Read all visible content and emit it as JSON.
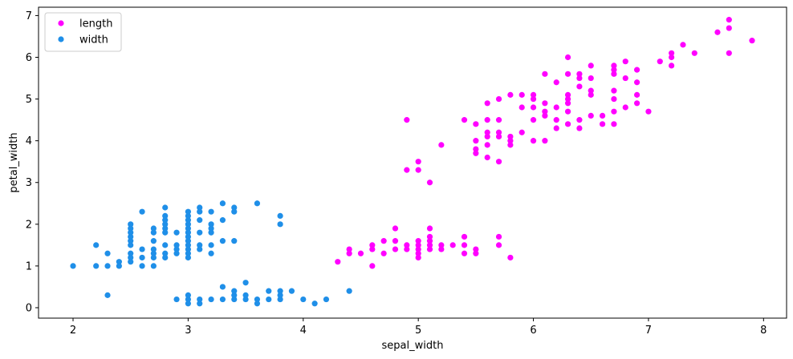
{
  "chart_data": {
    "type": "scatter",
    "title": "",
    "xlabel": "sepal_width",
    "ylabel": "petal_width",
    "xlim": [
      1.7,
      8.2
    ],
    "ylim": [
      -0.25,
      7.2
    ],
    "xticks": [
      2,
      3,
      4,
      5,
      6,
      7,
      8
    ],
    "yticks": [
      0,
      1,
      2,
      3,
      4,
      5,
      6,
      7
    ],
    "grid": false,
    "legend_position": "top-left",
    "series": [
      {
        "name": "length",
        "color": "#ff00ff",
        "points": [
          [
            4.3,
            1.1
          ],
          [
            4.4,
            1.3
          ],
          [
            4.4,
            1.4
          ],
          [
            4.5,
            1.3
          ],
          [
            4.6,
            1.0
          ],
          [
            4.6,
            1.4
          ],
          [
            4.6,
            1.5
          ],
          [
            4.7,
            1.3
          ],
          [
            4.7,
            1.6
          ],
          [
            4.8,
            1.4
          ],
          [
            4.8,
            1.6
          ],
          [
            4.8,
            1.9
          ],
          [
            4.9,
            1.4
          ],
          [
            4.9,
            1.5
          ],
          [
            5.0,
            1.2
          ],
          [
            5.0,
            1.3
          ],
          [
            5.0,
            1.4
          ],
          [
            5.0,
            1.5
          ],
          [
            5.0,
            1.6
          ],
          [
            5.1,
            1.4
          ],
          [
            5.1,
            1.5
          ],
          [
            5.1,
            1.6
          ],
          [
            5.1,
            1.7
          ],
          [
            5.1,
            1.9
          ],
          [
            5.2,
            1.4
          ],
          [
            5.2,
            1.5
          ],
          [
            5.3,
            1.5
          ],
          [
            5.4,
            1.3
          ],
          [
            5.4,
            1.5
          ],
          [
            5.4,
            1.7
          ],
          [
            5.5,
            1.3
          ],
          [
            5.5,
            1.4
          ],
          [
            5.7,
            1.5
          ],
          [
            5.7,
            1.7
          ],
          [
            5.8,
            1.2
          ],
          [
            4.9,
            4.5
          ],
          [
            4.9,
            3.3
          ],
          [
            5.0,
            3.3
          ],
          [
            5.0,
            3.5
          ],
          [
            5.1,
            3.0
          ],
          [
            5.2,
            3.9
          ],
          [
            5.4,
            4.5
          ],
          [
            5.5,
            3.7
          ],
          [
            5.5,
            3.8
          ],
          [
            5.5,
            4.0
          ],
          [
            5.5,
            4.4
          ],
          [
            5.6,
            3.6
          ],
          [
            5.6,
            3.9
          ],
          [
            5.6,
            4.1
          ],
          [
            5.6,
            4.2
          ],
          [
            5.6,
            4.5
          ],
          [
            5.6,
            4.9
          ],
          [
            5.7,
            3.5
          ],
          [
            5.7,
            4.1
          ],
          [
            5.7,
            4.2
          ],
          [
            5.7,
            4.5
          ],
          [
            5.7,
            5.0
          ],
          [
            5.8,
            3.9
          ],
          [
            5.8,
            4.0
          ],
          [
            5.8,
            4.1
          ],
          [
            5.8,
            5.1
          ],
          [
            5.9,
            4.2
          ],
          [
            5.9,
            4.8
          ],
          [
            5.9,
            5.1
          ],
          [
            6.0,
            4.0
          ],
          [
            6.0,
            4.5
          ],
          [
            6.0,
            4.8
          ],
          [
            6.0,
            5.0
          ],
          [
            6.0,
            5.1
          ],
          [
            6.1,
            4.0
          ],
          [
            6.1,
            4.6
          ],
          [
            6.1,
            4.7
          ],
          [
            6.1,
            4.9
          ],
          [
            6.1,
            5.6
          ],
          [
            6.2,
            4.3
          ],
          [
            6.2,
            4.5
          ],
          [
            6.2,
            4.8
          ],
          [
            6.2,
            5.4
          ],
          [
            6.3,
            4.4
          ],
          [
            6.3,
            4.7
          ],
          [
            6.3,
            4.9
          ],
          [
            6.3,
            5.0
          ],
          [
            6.3,
            5.1
          ],
          [
            6.3,
            5.6
          ],
          [
            6.3,
            6.0
          ],
          [
            6.4,
            4.3
          ],
          [
            6.4,
            4.5
          ],
          [
            6.4,
            5.3
          ],
          [
            6.4,
            5.5
          ],
          [
            6.4,
            5.6
          ],
          [
            6.5,
            4.6
          ],
          [
            6.5,
            5.1
          ],
          [
            6.5,
            5.2
          ],
          [
            6.5,
            5.5
          ],
          [
            6.5,
            5.8
          ],
          [
            6.6,
            4.4
          ],
          [
            6.6,
            4.6
          ],
          [
            6.7,
            4.4
          ],
          [
            6.7,
            4.7
          ],
          [
            6.7,
            5.0
          ],
          [
            6.7,
            5.2
          ],
          [
            6.7,
            5.6
          ],
          [
            6.7,
            5.7
          ],
          [
            6.7,
            5.8
          ],
          [
            6.8,
            4.8
          ],
          [
            6.8,
            5.5
          ],
          [
            6.8,
            5.9
          ],
          [
            6.9,
            4.9
          ],
          [
            6.9,
            5.1
          ],
          [
            6.9,
            5.4
          ],
          [
            6.9,
            5.7
          ],
          [
            7.0,
            4.7
          ],
          [
            7.1,
            5.9
          ],
          [
            7.2,
            5.8
          ],
          [
            7.2,
            6.0
          ],
          [
            7.2,
            6.1
          ],
          [
            7.3,
            6.3
          ],
          [
            7.4,
            6.1
          ],
          [
            7.6,
            6.6
          ],
          [
            7.7,
            6.1
          ],
          [
            7.7,
            6.7
          ],
          [
            7.7,
            6.9
          ],
          [
            7.9,
            6.4
          ]
        ]
      },
      {
        "name": "width",
        "color": "#1f8fe8",
        "points": [
          [
            2.0,
            1.0
          ],
          [
            2.2,
            1.0
          ],
          [
            2.2,
            1.5
          ],
          [
            2.3,
            0.3
          ],
          [
            2.3,
            1.0
          ],
          [
            2.3,
            1.3
          ],
          [
            2.4,
            1.0
          ],
          [
            2.4,
            1.1
          ],
          [
            2.5,
            1.1
          ],
          [
            2.5,
            1.2
          ],
          [
            2.5,
            1.3
          ],
          [
            2.5,
            1.5
          ],
          [
            2.5,
            1.6
          ],
          [
            2.5,
            1.7
          ],
          [
            2.5,
            1.8
          ],
          [
            2.5,
            1.9
          ],
          [
            2.5,
            2.0
          ],
          [
            2.6,
            1.0
          ],
          [
            2.6,
            1.2
          ],
          [
            2.6,
            1.4
          ],
          [
            2.6,
            2.3
          ],
          [
            2.7,
            1.0
          ],
          [
            2.7,
            1.2
          ],
          [
            2.7,
            1.3
          ],
          [
            2.7,
            1.4
          ],
          [
            2.7,
            1.6
          ],
          [
            2.7,
            1.8
          ],
          [
            2.7,
            1.9
          ],
          [
            2.8,
            1.2
          ],
          [
            2.8,
            1.3
          ],
          [
            2.8,
            1.5
          ],
          [
            2.8,
            1.8
          ],
          [
            2.8,
            1.9
          ],
          [
            2.8,
            2.0
          ],
          [
            2.8,
            2.1
          ],
          [
            2.8,
            2.2
          ],
          [
            2.8,
            2.4
          ],
          [
            2.9,
            0.2
          ],
          [
            2.9,
            1.3
          ],
          [
            2.9,
            1.4
          ],
          [
            2.9,
            1.5
          ],
          [
            2.9,
            1.8
          ],
          [
            3.0,
            0.1
          ],
          [
            3.0,
            0.2
          ],
          [
            3.0,
            0.3
          ],
          [
            3.0,
            1.2
          ],
          [
            3.0,
            1.3
          ],
          [
            3.0,
            1.4
          ],
          [
            3.0,
            1.5
          ],
          [
            3.0,
            1.6
          ],
          [
            3.0,
            1.7
          ],
          [
            3.0,
            1.8
          ],
          [
            3.0,
            1.9
          ],
          [
            3.0,
            2.0
          ],
          [
            3.0,
            2.1
          ],
          [
            3.0,
            2.2
          ],
          [
            3.0,
            2.3
          ],
          [
            3.1,
            0.1
          ],
          [
            3.1,
            0.2
          ],
          [
            3.1,
            1.4
          ],
          [
            3.1,
            1.5
          ],
          [
            3.1,
            1.8
          ],
          [
            3.1,
            2.1
          ],
          [
            3.1,
            2.3
          ],
          [
            3.1,
            2.4
          ],
          [
            3.2,
            0.2
          ],
          [
            3.2,
            1.3
          ],
          [
            3.2,
            1.5
          ],
          [
            3.2,
            1.8
          ],
          [
            3.2,
            1.9
          ],
          [
            3.2,
            2.0
          ],
          [
            3.2,
            2.3
          ],
          [
            3.3,
            0.2
          ],
          [
            3.3,
            0.5
          ],
          [
            3.3,
            1.6
          ],
          [
            3.3,
            2.1
          ],
          [
            3.3,
            2.5
          ],
          [
            3.4,
            0.2
          ],
          [
            3.4,
            0.3
          ],
          [
            3.4,
            0.4
          ],
          [
            3.4,
            1.6
          ],
          [
            3.4,
            2.3
          ],
          [
            3.4,
            2.4
          ],
          [
            3.5,
            0.2
          ],
          [
            3.5,
            0.3
          ],
          [
            3.5,
            0.6
          ],
          [
            3.6,
            0.1
          ],
          [
            3.6,
            0.2
          ],
          [
            3.6,
            2.5
          ],
          [
            3.7,
            0.2
          ],
          [
            3.7,
            0.4
          ],
          [
            3.8,
            0.2
          ],
          [
            3.8,
            0.3
          ],
          [
            3.8,
            0.4
          ],
          [
            3.8,
            2.0
          ],
          [
            3.8,
            2.2
          ],
          [
            3.9,
            0.4
          ],
          [
            4.0,
            0.2
          ],
          [
            4.1,
            0.1
          ],
          [
            4.2,
            0.2
          ],
          [
            4.4,
            0.4
          ]
        ]
      }
    ]
  }
}
